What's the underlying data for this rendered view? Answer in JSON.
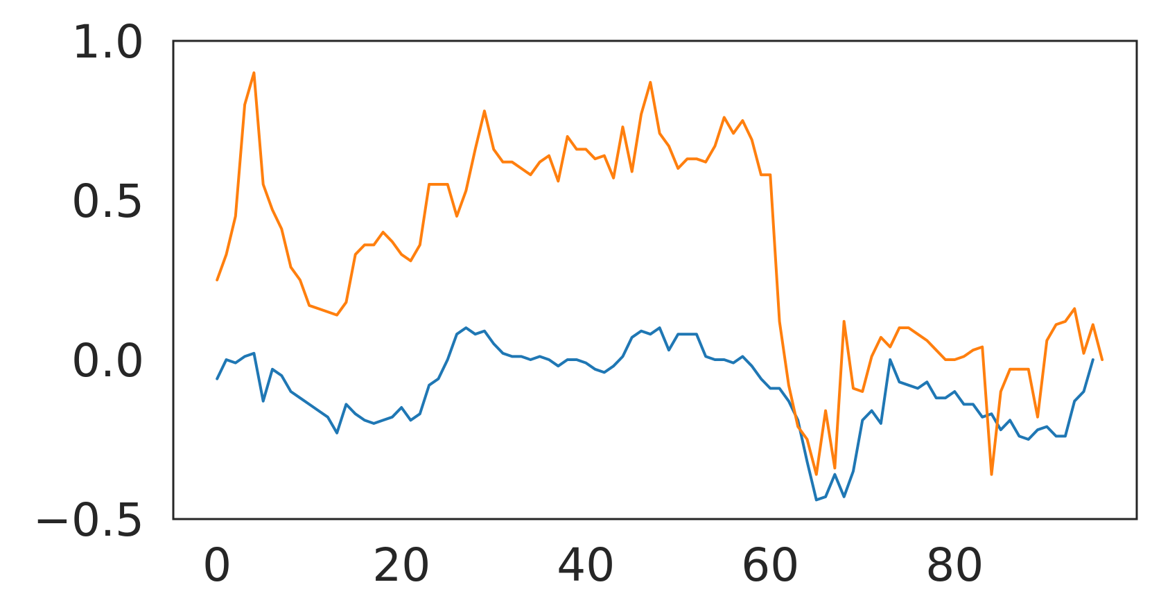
{
  "chart_data": {
    "type": "line",
    "title": "",
    "xlabel": "",
    "ylabel": "",
    "xlim": [
      -4.75,
      99.75
    ],
    "ylim": [
      -0.5,
      1.0
    ],
    "xticks": [
      0,
      20,
      40,
      60,
      80
    ],
    "yticks": [
      -0.5,
      0.0,
      0.5,
      1.0
    ],
    "xtick_labels": [
      "0",
      "20",
      "40",
      "60",
      "80"
    ],
    "ytick_labels": [
      "−0.5",
      "0.0",
      "0.5",
      "1.0"
    ],
    "grid": false,
    "legend": "none",
    "colors": {
      "series_1": "#1f77b4",
      "series_2": "#ff7f0e",
      "axes": "#262626",
      "background": "#ffffff"
    },
    "series": [
      {
        "color": "#1f77b4",
        "values": [
          -0.06,
          0.0,
          -0.01,
          0.01,
          0.02,
          -0.13,
          -0.03,
          -0.05,
          -0.1,
          -0.12,
          -0.14,
          -0.16,
          -0.18,
          -0.23,
          -0.14,
          -0.17,
          -0.19,
          -0.2,
          -0.19,
          -0.18,
          -0.15,
          -0.19,
          -0.17,
          -0.08,
          -0.06,
          0.0,
          0.08,
          0.1,
          0.08,
          0.09,
          0.05,
          0.02,
          0.01,
          0.01,
          0.0,
          0.01,
          0.0,
          -0.02,
          0.0,
          0.0,
          -0.01,
          -0.03,
          -0.04,
          -0.02,
          0.01,
          0.07,
          0.09,
          0.08,
          0.1,
          0.03,
          0.08,
          0.08,
          0.08,
          0.01,
          0.0,
          0.0,
          -0.01,
          0.01,
          -0.02,
          -0.06,
          -0.09,
          -0.09,
          -0.13,
          -0.19,
          -0.32,
          -0.44,
          -0.43,
          -0.36,
          -0.43,
          -0.35,
          -0.19,
          -0.16,
          -0.2,
          0.0,
          -0.07,
          -0.08,
          -0.09,
          -0.07,
          -0.12,
          -0.12,
          -0.1,
          -0.14,
          -0.14,
          -0.18,
          -0.17,
          -0.22,
          -0.19,
          -0.24,
          -0.25,
          -0.22,
          -0.21,
          -0.24,
          -0.24,
          -0.13,
          -0.1,
          0.0
        ]
      },
      {
        "color": "#ff7f0e",
        "values": [
          0.25,
          0.33,
          0.45,
          0.8,
          0.9,
          0.55,
          0.47,
          0.41,
          0.29,
          0.25,
          0.17,
          0.16,
          0.15,
          0.14,
          0.18,
          0.33,
          0.36,
          0.36,
          0.4,
          0.37,
          0.33,
          0.31,
          0.36,
          0.55,
          0.55,
          0.55,
          0.45,
          0.53,
          0.66,
          0.78,
          0.66,
          0.62,
          0.62,
          0.6,
          0.58,
          0.62,
          0.64,
          0.56,
          0.7,
          0.66,
          0.66,
          0.63,
          0.64,
          0.57,
          0.73,
          0.59,
          0.77,
          0.87,
          0.71,
          0.67,
          0.6,
          0.63,
          0.63,
          0.62,
          0.67,
          0.76,
          0.71,
          0.75,
          0.69,
          0.58,
          0.58,
          0.12,
          -0.08,
          -0.21,
          -0.25,
          -0.36,
          -0.16,
          -0.34,
          0.12,
          -0.09,
          -0.1,
          0.01,
          0.07,
          0.04,
          0.1,
          0.1,
          0.08,
          0.06,
          0.03,
          0.0,
          0.0,
          0.01,
          0.03,
          0.04,
          -0.36,
          -0.1,
          -0.03,
          -0.03,
          -0.03,
          -0.18,
          0.06,
          0.11,
          0.12,
          0.16,
          0.02,
          0.11,
          0.0
        ]
      }
    ]
  }
}
